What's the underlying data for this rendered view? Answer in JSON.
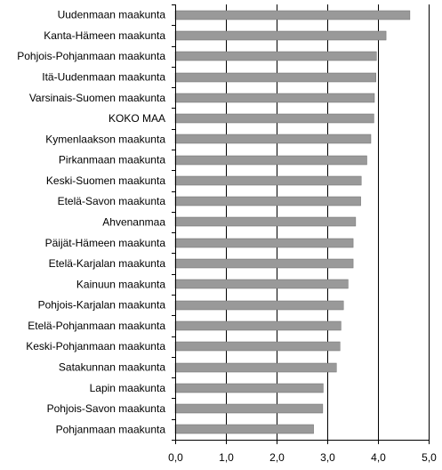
{
  "chart_data": {
    "type": "bar",
    "orientation": "horizontal",
    "title": "",
    "xlabel": "",
    "ylabel": "",
    "categories": [
      "Uudenmaan maakunta",
      "Kanta-Hämeen maakunta",
      "Pohjois-Pohjanmaan maakunta",
      "Itä-Uudenmaan maakunta",
      "Varsinais-Suomen maakunta",
      "KOKO MAA",
      "Kymenlaakson maakunta",
      "Pirkanmaan maakunta",
      "Keski-Suomen maakunta",
      "Etelä-Savon maakunta",
      "Ahvenanmaa",
      "Päijät-Hämeen maakunta",
      "Etelä-Karjalan maakunta",
      "Kainuun maakunta",
      "Pohjois-Karjalan maakunta",
      "Etelä-Pohjanmaan maakunta",
      "Keski-Pohjanmaan maakunta",
      "Satakunnan maakunta",
      "Lapin maakunta",
      "Pohjois-Savon maakunta",
      "Pohjanmaan maakunta"
    ],
    "values": [
      4.63,
      4.16,
      3.97,
      3.96,
      3.93,
      3.92,
      3.86,
      3.78,
      3.67,
      3.66,
      3.56,
      3.51,
      3.51,
      3.41,
      3.32,
      3.27,
      3.25,
      3.18,
      2.92,
      2.91,
      2.73
    ],
    "xlim": [
      0,
      5
    ],
    "xticks": [
      "0,0",
      "1,0",
      "2,0",
      "3,0",
      "4,0",
      "5,0"
    ],
    "grid": true,
    "bar_color": "#999999",
    "legend": "none"
  }
}
